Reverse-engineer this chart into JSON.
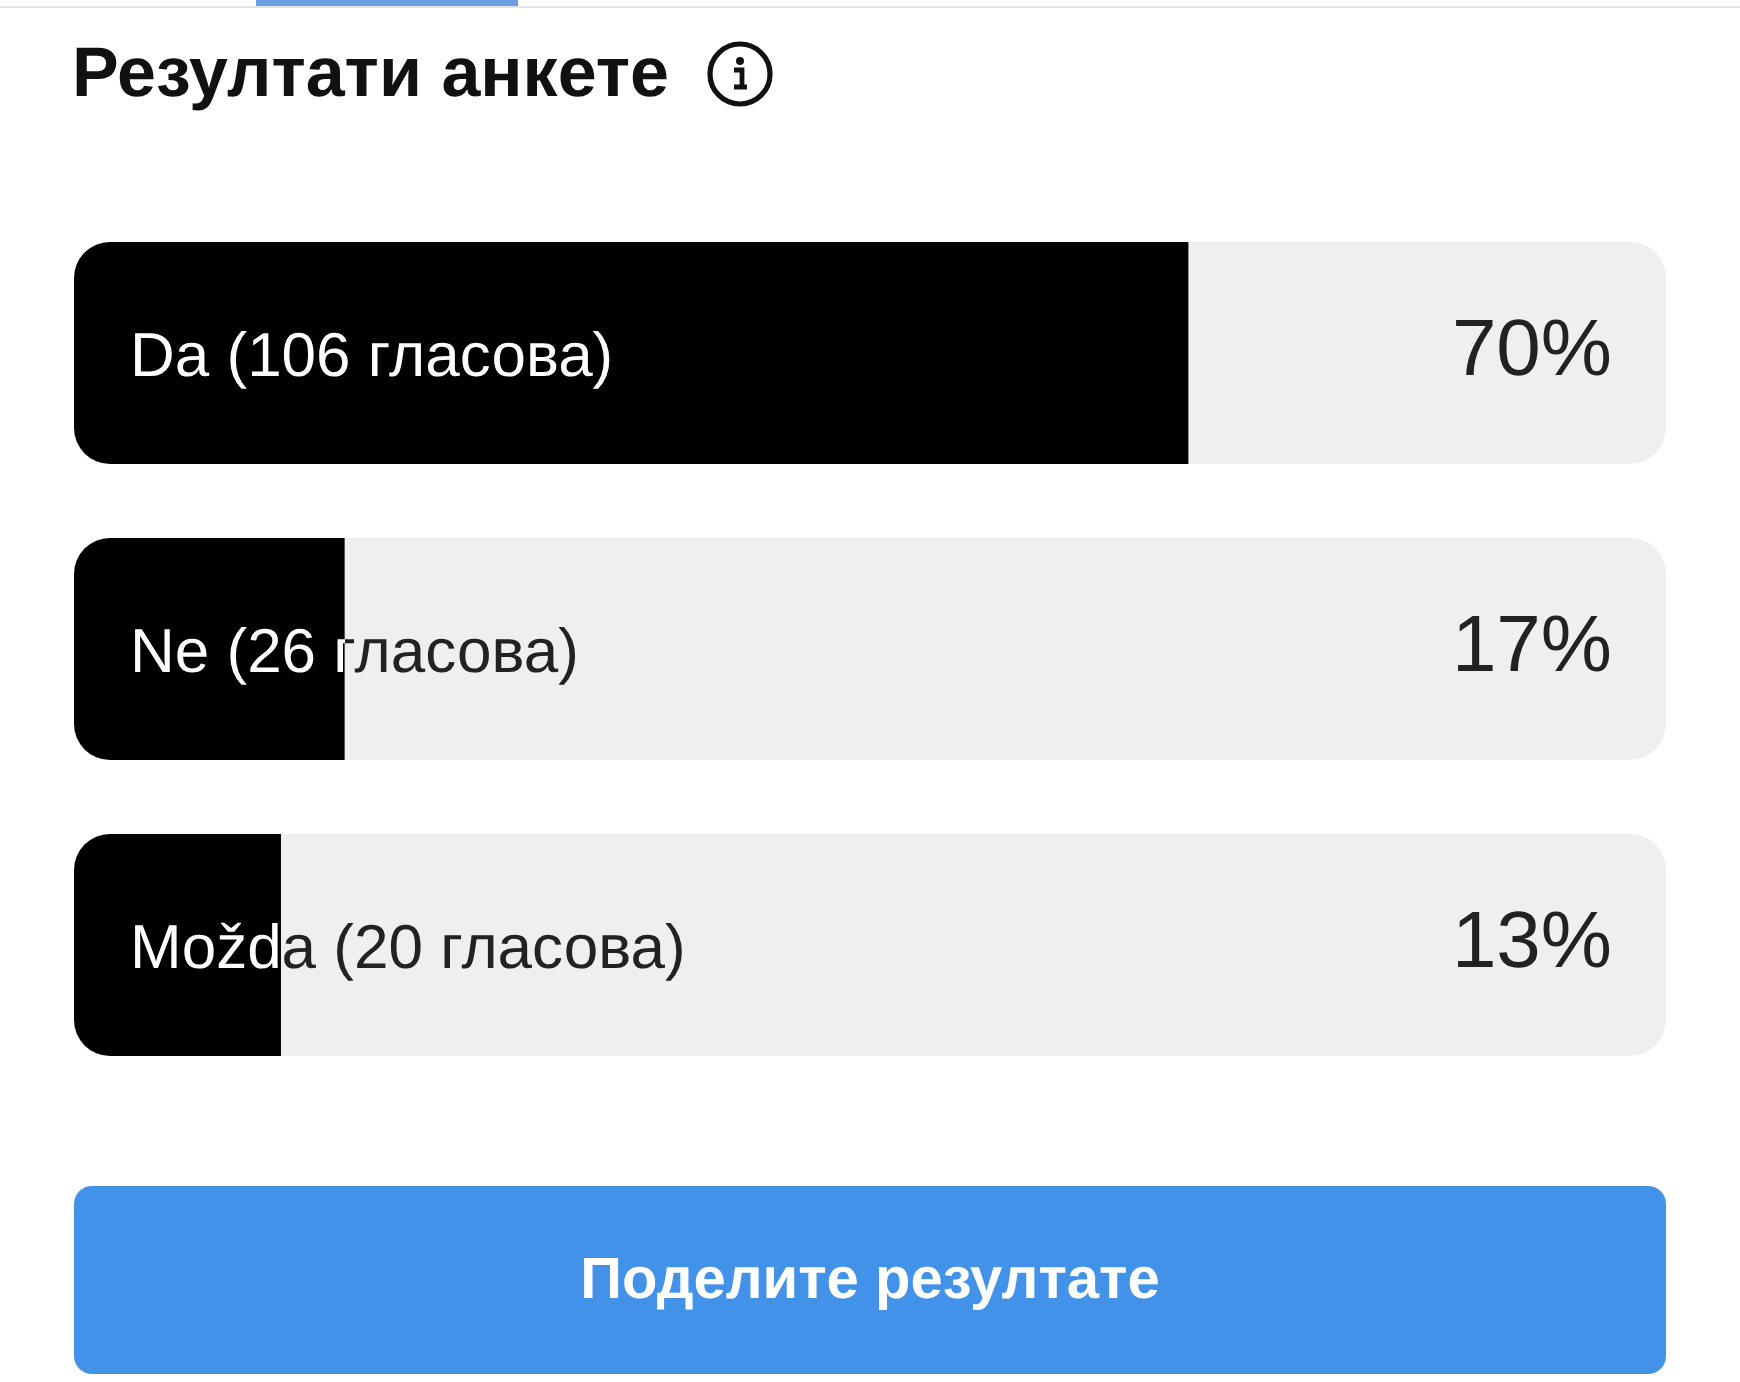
{
  "chart_data": {
    "type": "bar",
    "orientation": "horizontal",
    "title": "Резултати анкете",
    "categories": [
      "Da (106 гласова)",
      "Ne (26 гласова)",
      "Možda (20 гласова)"
    ],
    "values": [
      70,
      17,
      13
    ],
    "value_labels": [
      "70%",
      "17%",
      "13%"
    ],
    "color": "#000000",
    "xlim": [
      0,
      100
    ],
    "tick_labels": "y",
    "annotations": [
      "Поделите резултате"
    ]
  }
}
